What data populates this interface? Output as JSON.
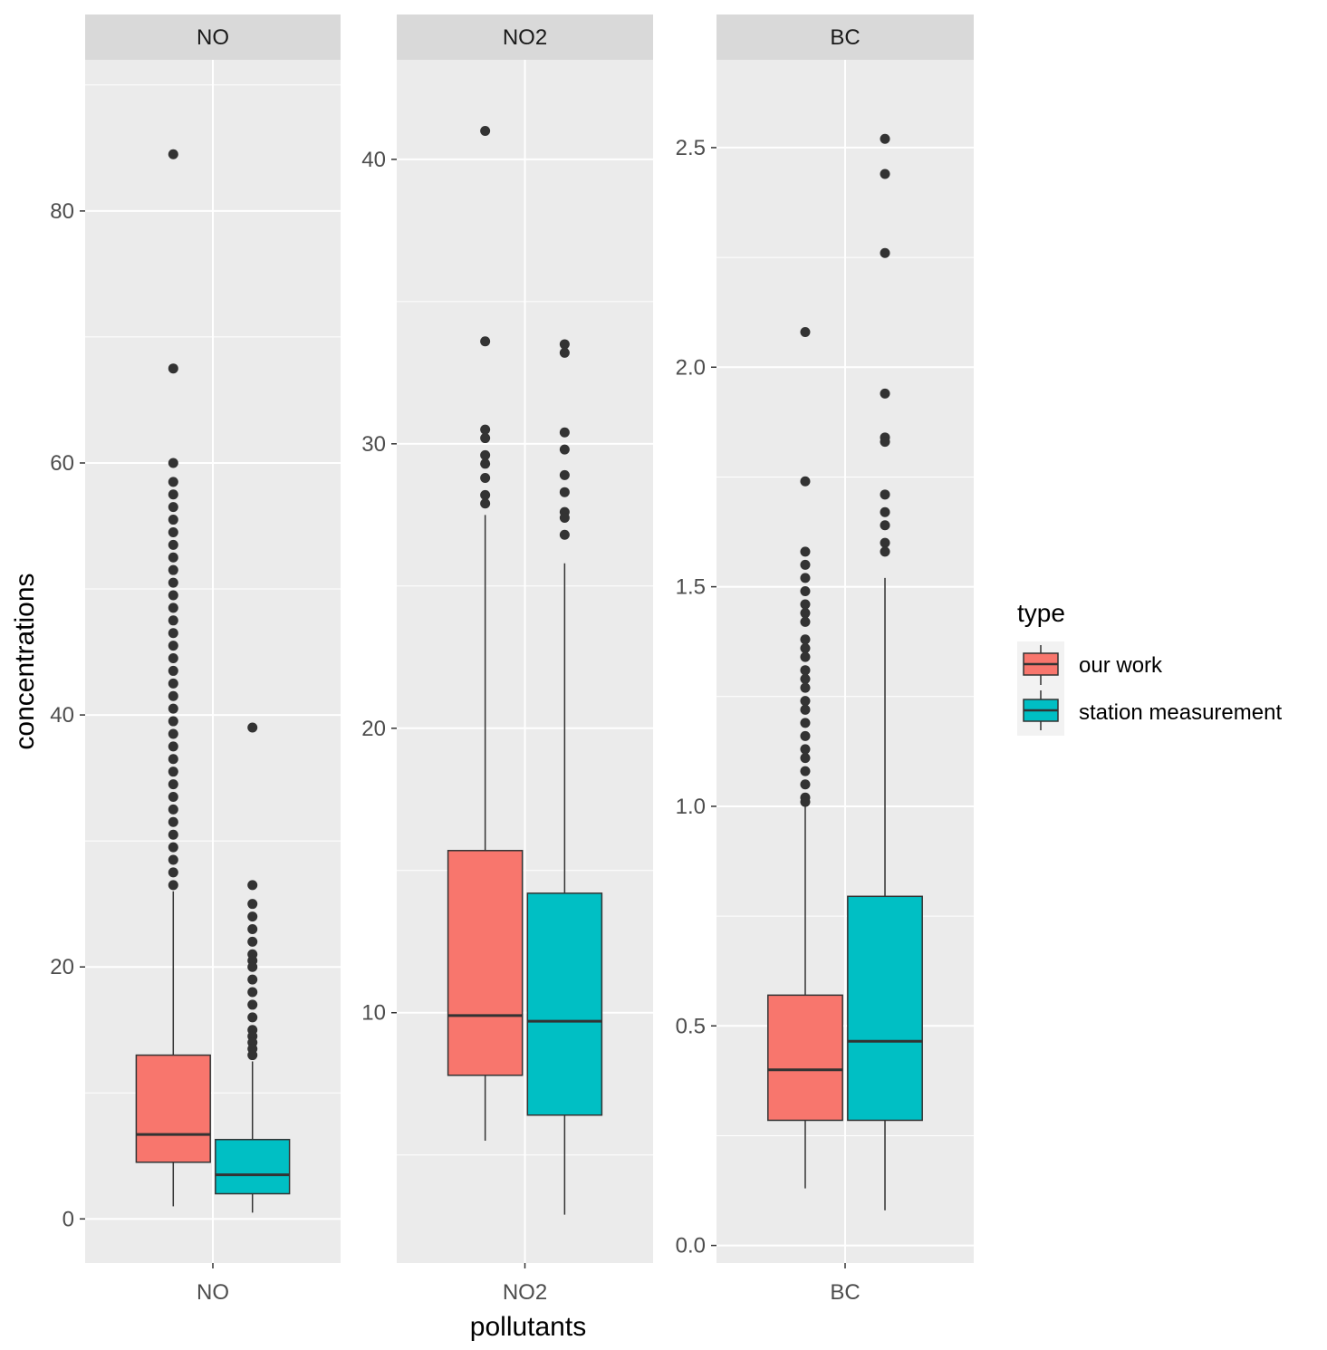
{
  "chart_data": {
    "type": "box",
    "xlabel": "pollutants",
    "ylabel": "concentrations",
    "legend": {
      "title": "type",
      "position": "right",
      "entries": [
        {
          "label": "our work",
          "color": "#F8766D"
        },
        {
          "label": "station measurement",
          "color": "#00BFC4"
        }
      ]
    },
    "panels": [
      {
        "strip": "NO",
        "x_tick": "NO",
        "ylim": [
          -3.5,
          92
        ],
        "y_ticks": [
          0,
          20,
          40,
          60,
          80
        ],
        "y_tick_labels": [
          "0",
          "20",
          "40",
          "60",
          "80"
        ],
        "series": [
          {
            "name": "our work",
            "whisker_low": 1.0,
            "q1": 4.5,
            "median": 6.7,
            "q3": 13.0,
            "whisker_high": 26.0,
            "outliers": [
              84.5,
              67.5,
              60.0,
              58.5,
              57.5,
              56.5,
              55.5,
              54.5,
              53.5,
              52.5,
              51.5,
              50.5,
              49.5,
              48.5,
              47.5,
              46.5,
              45.5,
              44.5,
              43.5,
              42.5,
              41.5,
              40.5,
              39.5,
              38.5,
              37.5,
              36.5,
              35.5,
              34.5,
              33.5,
              32.5,
              31.5,
              30.5,
              29.5,
              28.5,
              27.5,
              26.5
            ]
          },
          {
            "name": "station measurement",
            "whisker_low": 0.5,
            "q1": 2.0,
            "median": 3.5,
            "q3": 6.3,
            "whisker_high": 12.5,
            "outliers": [
              39.0,
              26.5,
              25.0,
              24.0,
              23.0,
              22.0,
              21.0,
              20.5,
              20.0,
              19.0,
              18.0,
              17.0,
              16.0,
              15.0,
              14.5,
              14.0,
              13.5,
              13.0
            ]
          }
        ]
      },
      {
        "strip": "NO2",
        "x_tick": "NO2",
        "ylim": [
          1.2,
          43.5
        ],
        "y_ticks": [
          10,
          20,
          30,
          40
        ],
        "y_tick_labels": [
          "10",
          "20",
          "30",
          "40"
        ],
        "series": [
          {
            "name": "our work",
            "whisker_low": 5.5,
            "q1": 7.8,
            "median": 9.9,
            "q3": 15.7,
            "whisker_high": 27.5,
            "outliers": [
              41.0,
              33.6,
              30.5,
              30.2,
              29.6,
              29.3,
              28.8,
              28.2,
              27.9
            ]
          },
          {
            "name": "station measurement",
            "whisker_low": 2.9,
            "q1": 6.4,
            "median": 9.7,
            "q3": 14.2,
            "whisker_high": 25.8,
            "outliers": [
              33.5,
              33.2,
              30.4,
              29.8,
              28.9,
              28.3,
              27.6,
              27.4,
              26.8
            ]
          }
        ]
      },
      {
        "strip": "BC",
        "x_tick": "BC",
        "ylim": [
          -0.04,
          2.7
        ],
        "y_ticks": [
          0.0,
          0.5,
          1.0,
          1.5,
          2.0,
          2.5
        ],
        "y_tick_labels": [
          "0.0",
          "0.5",
          "1.0",
          "1.5",
          "2.0",
          "2.5"
        ],
        "series": [
          {
            "name": "our work",
            "whisker_low": 0.13,
            "q1": 0.285,
            "median": 0.4,
            "q3": 0.57,
            "whisker_high": 1.0,
            "outliers": [
              2.08,
              1.74,
              1.58,
              1.55,
              1.52,
              1.49,
              1.46,
              1.44,
              1.42,
              1.38,
              1.36,
              1.34,
              1.31,
              1.29,
              1.27,
              1.24,
              1.22,
              1.19,
              1.16,
              1.13,
              1.11,
              1.08,
              1.05,
              1.02,
              1.01
            ]
          },
          {
            "name": "station measurement",
            "whisker_low": 0.08,
            "q1": 0.285,
            "median": 0.465,
            "q3": 0.795,
            "whisker_high": 1.52,
            "outliers": [
              2.52,
              2.44,
              2.26,
              1.94,
              1.84,
              1.83,
              1.71,
              1.67,
              1.64,
              1.6,
              1.58
            ]
          }
        ]
      }
    ]
  }
}
